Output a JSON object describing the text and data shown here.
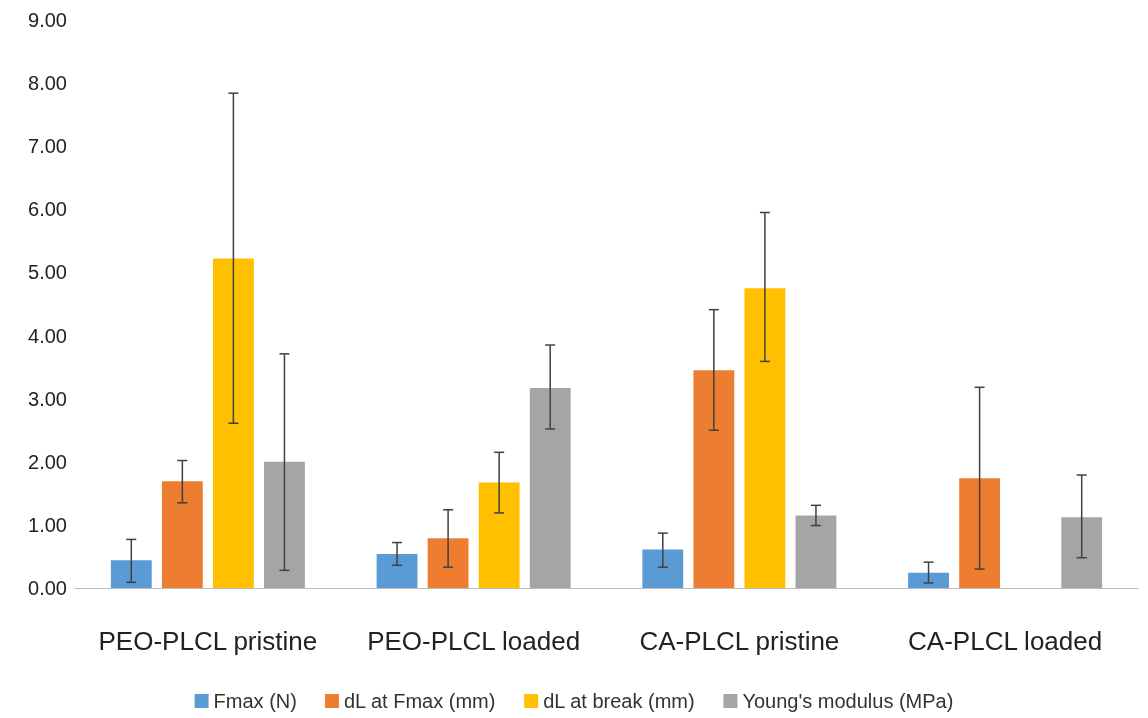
{
  "chart_data": {
    "type": "bar",
    "categories": [
      "PEO-PLCL pristine",
      "PEO-PLCL loaded",
      "CA-PLCL pristine",
      "CA-PLCL loaded"
    ],
    "series": [
      {
        "name": "Fmax (N)",
        "color": "#5b9bd5",
        "values": [
          0.44,
          0.54,
          0.61,
          0.24
        ],
        "errors": [
          [
            0.09,
            0.77
          ],
          [
            0.36,
            0.72
          ],
          [
            0.33,
            0.87
          ],
          [
            0.08,
            0.41
          ]
        ]
      },
      {
        "name": "dL at Fmax (mm)",
        "color": "#ed7d31",
        "values": [
          1.69,
          0.79,
          3.45,
          1.74
        ],
        "errors": [
          [
            1.35,
            2.02
          ],
          [
            0.33,
            1.24
          ],
          [
            2.5,
            4.41
          ],
          [
            0.3,
            3.18
          ]
        ]
      },
      {
        "name": "dL at break (mm)",
        "color": "#ffc000",
        "values": [
          5.22,
          1.67,
          4.75,
          null
        ],
        "errors": [
          [
            2.61,
            7.84
          ],
          [
            1.19,
            2.15
          ],
          [
            3.59,
            5.95
          ],
          null
        ]
      },
      {
        "name": "Young's modulus (MPa)",
        "color": "#a5a5a5",
        "values": [
          2.0,
          3.17,
          1.15,
          1.12
        ],
        "errors": [
          [
            0.28,
            3.71
          ],
          [
            2.52,
            3.85
          ],
          [
            0.99,
            1.31
          ],
          [
            0.48,
            1.79
          ]
        ]
      }
    ],
    "ylim": [
      0,
      9
    ],
    "yticks": [
      {
        "value": 0,
        "label": "0.00"
      },
      {
        "value": 1,
        "label": "1.00"
      },
      {
        "value": 2,
        "label": "2.00"
      },
      {
        "value": 3,
        "label": "3.00"
      },
      {
        "value": 4,
        "label": "4.00"
      },
      {
        "value": 5,
        "label": "5.00"
      },
      {
        "value": 6,
        "label": "6.00"
      },
      {
        "value": 7,
        "label": "7.00"
      },
      {
        "value": 8,
        "label": "8.00"
      },
      {
        "value": 9,
        "label": "9.00"
      }
    ],
    "grid": false,
    "legend": "bottom"
  }
}
